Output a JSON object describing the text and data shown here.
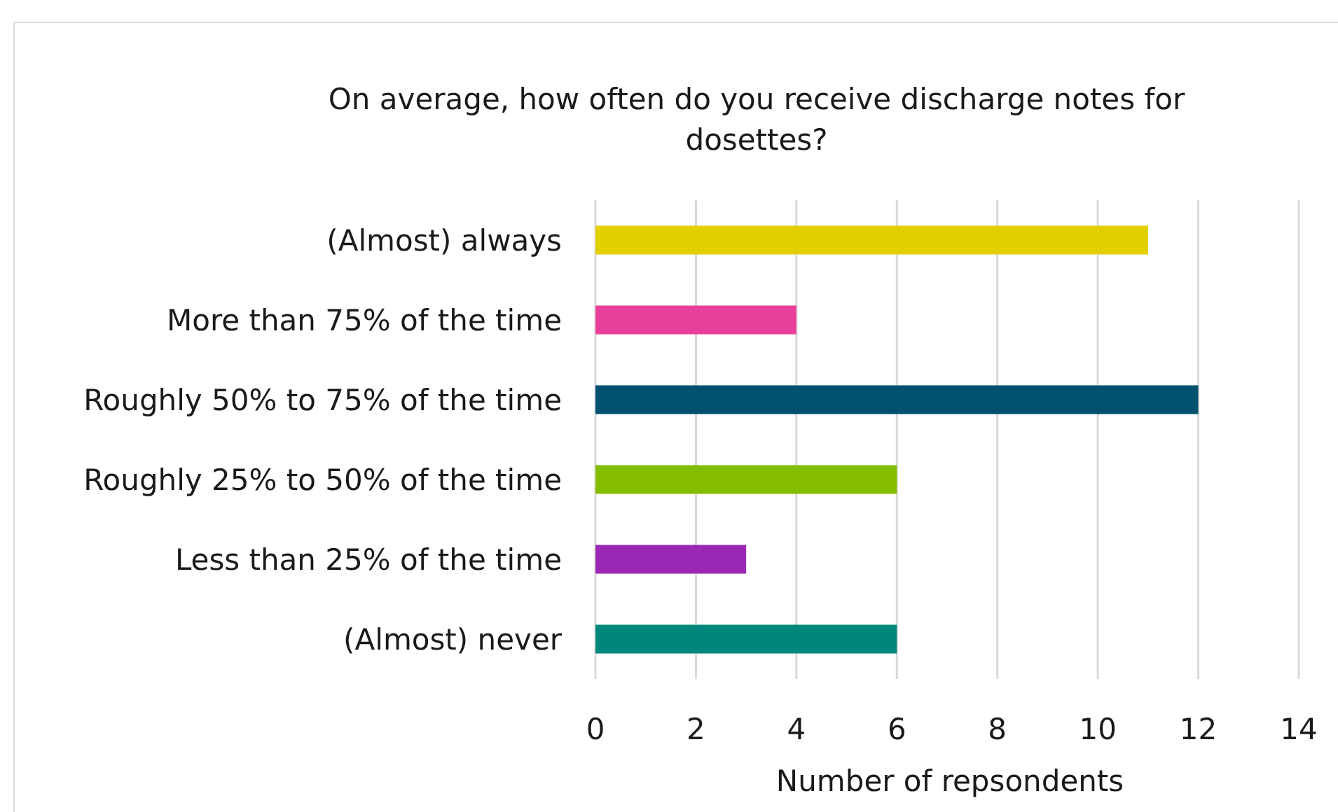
{
  "chart_data": {
    "type": "bar",
    "orientation": "horizontal",
    "title": "On average, how often do you receive discharge notes for dosettes?",
    "xlabel": "Number of repsondents",
    "categories": [
      "(Almost) always",
      "More than 75% of the time",
      "Roughly 50% to 75% of the time",
      "Roughly 25% to 50% of the time",
      "Less than 25% of the time",
      "(Almost) never"
    ],
    "values": [
      11,
      4,
      12,
      6,
      3,
      6
    ],
    "colors": [
      "#e2cf00",
      "#e8409a",
      "#00506e",
      "#84bd00",
      "#9b27b5",
      "#00877b"
    ],
    "xlim": [
      0,
      14
    ],
    "xticks": [
      0,
      2,
      4,
      6,
      8,
      10,
      12,
      14
    ],
    "grid": "x"
  }
}
